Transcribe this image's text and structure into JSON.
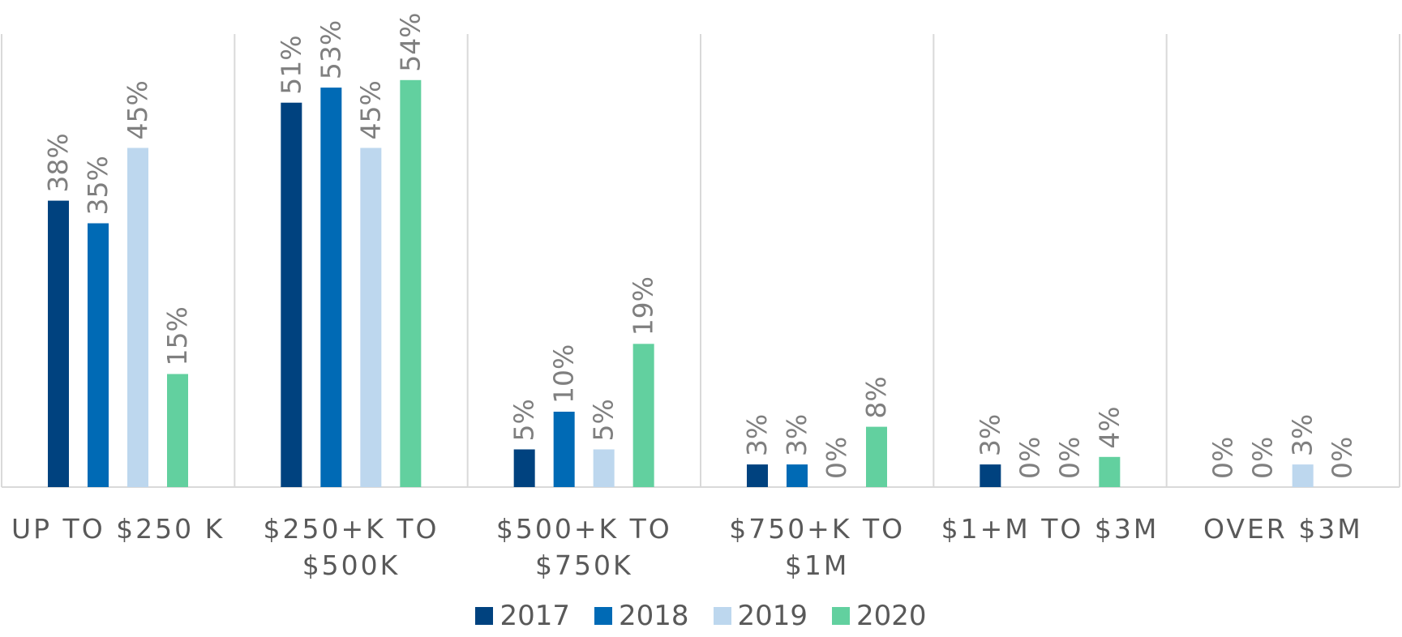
{
  "chart_data": {
    "type": "bar",
    "categories": [
      "UP TO $250 K",
      "$250+K TO $500K",
      "$500+K TO $750K",
      "$750+K TO $1M",
      "$1+M TO $3M",
      "OVER $3M"
    ],
    "series": [
      {
        "name": "2017",
        "color": "#00427f",
        "values": [
          38,
          51,
          5,
          3,
          3,
          0
        ],
        "value_labels": [
          "38%",
          "51%",
          "5%",
          "3%",
          "3%",
          "0%"
        ]
      },
      {
        "name": "2018",
        "color": "#006ab5",
        "values": [
          35,
          53,
          10,
          3,
          0,
          0
        ],
        "value_labels": [
          "35%",
          "53%",
          "10%",
          "3%",
          "0%",
          "0%"
        ]
      },
      {
        "name": "2019",
        "color": "#bdd7ee",
        "values": [
          45,
          45,
          5,
          0,
          0,
          3
        ],
        "value_labels": [
          "45%",
          "45%",
          "5%",
          "0%",
          "0%",
          "3%"
        ]
      },
      {
        "name": "2020",
        "color": "#62d09f",
        "values": [
          15,
          54,
          19,
          8,
          4,
          0
        ],
        "value_labels": [
          "15%",
          "54%",
          "19%",
          "8%",
          "4%",
          "0%"
        ]
      }
    ]
  }
}
